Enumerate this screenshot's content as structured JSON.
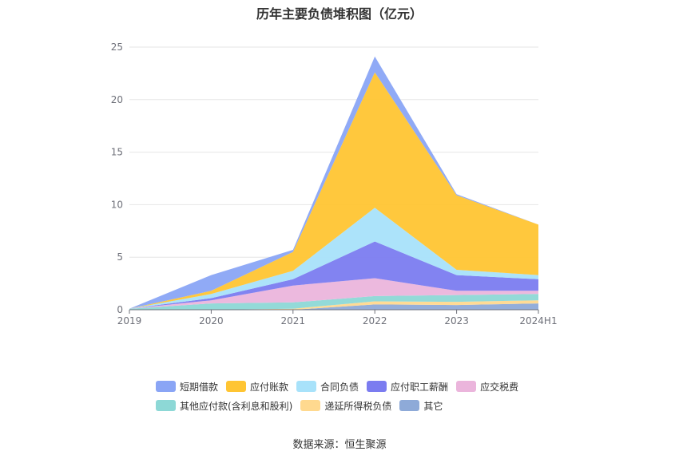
{
  "title": "历年主要负债堆积图（亿元）",
  "source": "数据来源：恒生聚源",
  "chart_data": {
    "type": "area",
    "stacked": true,
    "title": "历年主要负债堆积图（亿元）",
    "x": [
      "2019",
      "2020",
      "2021",
      "2022",
      "2023",
      "2024H1"
    ],
    "y_ticks": [
      "0",
      "5",
      "10",
      "15",
      "20",
      "25"
    ],
    "ylim": [
      0,
      25
    ],
    "grid": true,
    "legend_position": "bottom",
    "series": [
      {
        "name": "其它",
        "color": "#8eaad8",
        "values": [
          0.0,
          0.0,
          0.0,
          0.5,
          0.45,
          0.6
        ]
      },
      {
        "name": "递延所得税负债",
        "color": "#ffd98f",
        "values": [
          0.0,
          0.0,
          0.1,
          0.3,
          0.3,
          0.3
        ]
      },
      {
        "name": "其他应付款(含利息和股利)",
        "color": "#8dd8d6",
        "values": [
          0.1,
          0.6,
          0.6,
          0.5,
          0.65,
          0.6
        ]
      },
      {
        "name": "应交税费",
        "color": "#ebb5dc",
        "values": [
          0.0,
          0.3,
          1.6,
          1.7,
          0.4,
          0.3
        ]
      },
      {
        "name": "应付职工薪酬",
        "color": "#7b7cf0",
        "values": [
          0.0,
          0.2,
          0.6,
          3.5,
          1.5,
          1.1
        ]
      },
      {
        "name": "合同负债",
        "color": "#a8e2fa",
        "values": [
          0.0,
          0.4,
          0.8,
          3.2,
          0.5,
          0.4
        ]
      },
      {
        "name": "应付账款",
        "color": "#ffc533",
        "values": [
          0.0,
          0.3,
          1.8,
          12.9,
          7.1,
          4.8
        ]
      },
      {
        "name": "短期借款",
        "color": "#8aa5f5",
        "values": [
          0.0,
          1.5,
          0.2,
          1.5,
          0.1,
          0.0
        ]
      }
    ],
    "legend_order": [
      "短期借款",
      "应付账款",
      "合同负债",
      "应付职工薪酬",
      "应交税费",
      "其他应付款(含利息和股利)",
      "递延所得税负债",
      "其它"
    ]
  }
}
